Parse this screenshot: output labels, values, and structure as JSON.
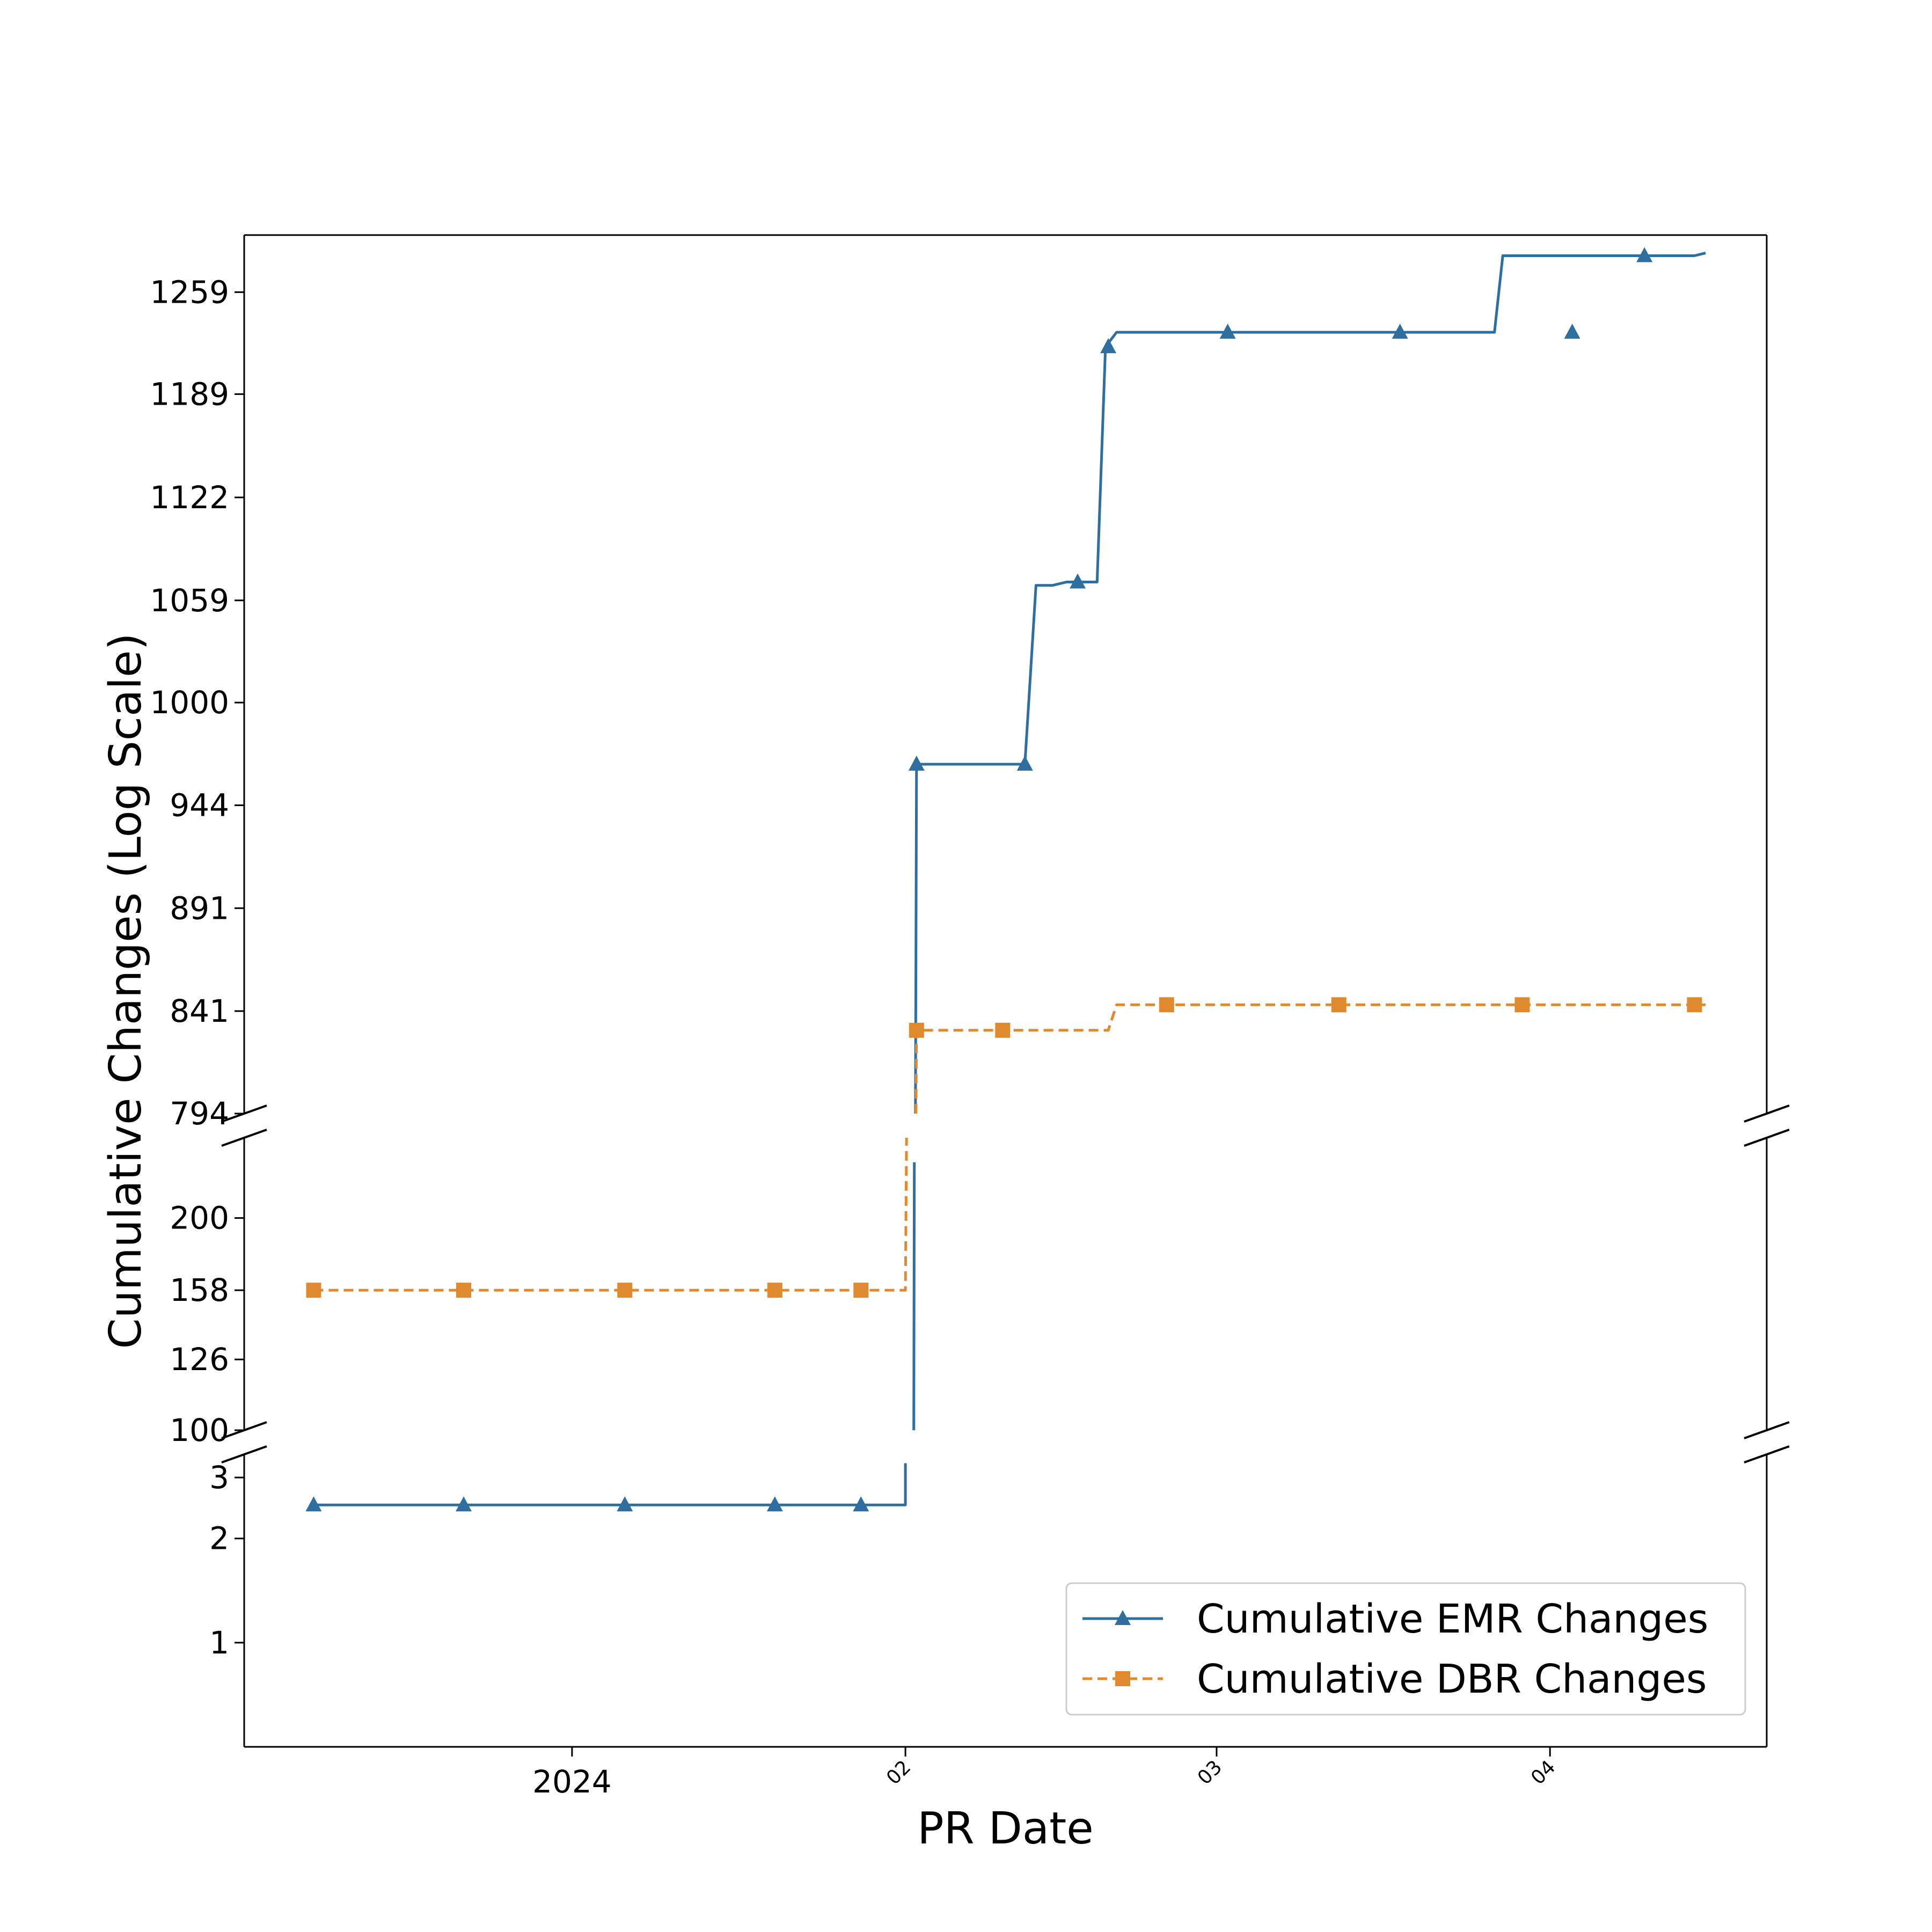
{
  "chart_data": {
    "type": "line",
    "title": "",
    "xlabel": "PR Date",
    "ylabel": "Cumulative Changes (Log Scale)",
    "x_axis": {
      "range_days": [
        -75.0,
        199.0
      ],
      "ticks": [
        {
          "day": -16,
          "label": "2024",
          "style": "large"
        },
        {
          "day": 44,
          "label": "02",
          "style": "small-rotated"
        },
        {
          "day": 100,
          "label": "03",
          "style": "small-rotated"
        },
        {
          "day": 160,
          "label": "04",
          "style": "small-rotated"
        }
      ]
    },
    "y_axis_segments": [
      {
        "name": "upper",
        "range": [
          794,
          1300
        ],
        "ticks": [
          794,
          841,
          891,
          944,
          1000,
          1059,
          1122,
          1189,
          1259
        ]
      },
      {
        "name": "middle",
        "range": [
          100,
          260
        ],
        "ticks": [
          100,
          126,
          158,
          200
        ]
      },
      {
        "name": "lower",
        "range": [
          0.5,
          3.5
        ],
        "ticks": [
          1,
          2,
          3
        ]
      }
    ],
    "series": [
      {
        "name": "Cumulative EMR Changes",
        "color": "#2f6f9f",
        "line": "solid",
        "marker": "triangle",
        "points": [
          [
            -62.5,
            2.5
          ],
          [
            44.0,
            2.5
          ],
          [
            44.0,
            3.3
          ],
          [
            45.5,
            100
          ],
          [
            45.6,
            240
          ],
          [
            45.8,
            794
          ],
          [
            46.0,
            966
          ],
          [
            65.5,
            966
          ],
          [
            67.5,
            1068
          ],
          [
            70.5,
            1068
          ],
          [
            73.0,
            1070
          ],
          [
            78.5,
            1070
          ],
          [
            80.0,
            1221
          ],
          [
            82.0,
            1231
          ],
          [
            150.0,
            1231
          ],
          [
            151.5,
            1285
          ],
          [
            186.0,
            1285
          ],
          [
            188.0,
            1287
          ]
        ],
        "markers": [
          [
            -62.5,
            2.5
          ],
          [
            -35.5,
            2.5
          ],
          [
            -6.5,
            2.5
          ],
          [
            20.5,
            2.5
          ],
          [
            36.0,
            2.5
          ],
          [
            46.0,
            966
          ],
          [
            65.5,
            966
          ],
          [
            75.0,
            1070
          ],
          [
            80.5,
            1221
          ],
          [
            102.0,
            1231
          ],
          [
            133.0,
            1231
          ],
          [
            164.0,
            1231
          ],
          [
            177.0,
            1285
          ]
        ]
      },
      {
        "name": "Cumulative DBR Changes",
        "color": "#e08a2f",
        "line": "dashed",
        "marker": "square",
        "points": [
          [
            -62.5,
            158
          ],
          [
            44.0,
            158
          ],
          [
            44.2,
            260
          ],
          [
            45.9,
            794
          ],
          [
            46.0,
            832
          ],
          [
            80.5,
            832
          ],
          [
            82.0,
            844
          ],
          [
            188.0,
            844
          ]
        ],
        "markers": [
          [
            -62.5,
            158
          ],
          [
            -35.5,
            158
          ],
          [
            -6.5,
            158
          ],
          [
            20.5,
            158
          ],
          [
            36.0,
            158
          ],
          [
            46.0,
            832
          ],
          [
            61.5,
            832
          ],
          [
            91.0,
            844
          ],
          [
            122.0,
            844
          ],
          [
            155.0,
            844
          ],
          [
            186.0,
            844
          ]
        ]
      }
    ],
    "legend": {
      "position": "bottom-right",
      "entries": [
        "Cumulative EMR Changes",
        "Cumulative DBR Changes"
      ]
    },
    "grid": false
  }
}
